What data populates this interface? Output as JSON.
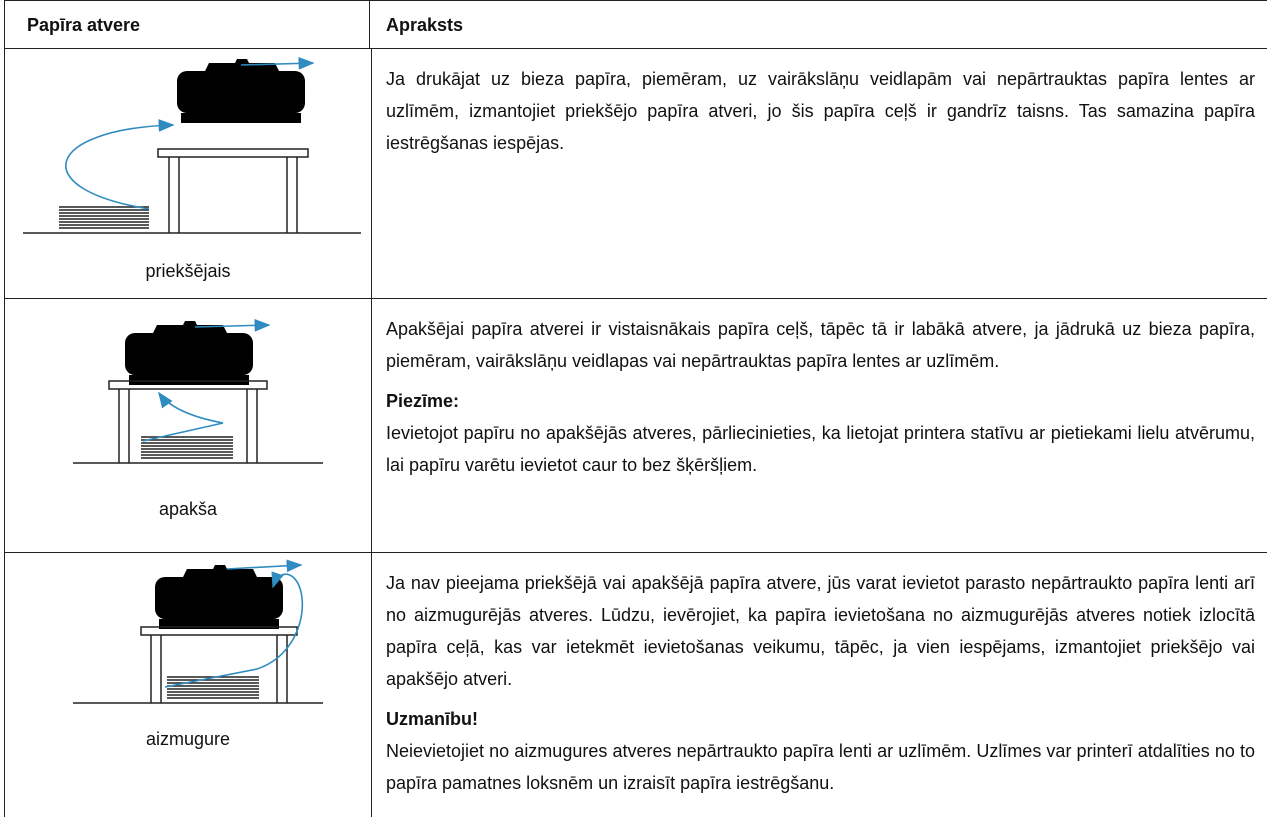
{
  "table": {
    "headers": [
      "Papīra atvere",
      "Apraksts"
    ],
    "rows": [
      {
        "label": "priekšējais",
        "text": "Ja drukājat uz bieza papīra, piemēram, uz vairākslāņu veidlapām vai nepārtrauktas papīra lentes ar uzlīmēm, izmantojiet priekšējo papīra atveri, jo šis papīra ceļš ir gandrīz taisns. Tas samazina papīra iestrēgšanas iespējas."
      },
      {
        "label": "apakša",
        "text": "Apakšējai papīra atverei ir vistaisnākais papīra ceļš, tāpēc tā ir labākā atvere, ja jādrukā uz bieza papīra, piemēram, vairākslāņu veidlapas vai nepārtrauktas papīra lentes ar uzlīmēm.",
        "note_title": "Piezīme:",
        "note_text": "Ievietojot papīru no apakšējās atveres, pārliecinieties, ka lietojat printera statīvu ar pietiekami lielu atvērumu, lai papīru varētu ievietot caur to bez šķēršļiem."
      },
      {
        "label": "aizmugure",
        "text": "Ja nav pieejama priekšējā vai apakšējā papīra atvere, jūs varat ievietot parasto nepārtraukto papīra lenti arī no aizmugurējās atveres. Lūdzu, ievērojiet, ka papīra ievietošana no aizmugurējās atveres notiek izlocītā papīra ceļā, kas var ietekmēt ievietošanas veikumu, tāpēc, ja vien iespējams, izmantojiet priekšējo vai apakšējo atveri.",
        "note_title": "Uzmanību!",
        "note_text": "Neievietojiet no aizmugures atveres nepārtraukto papīra lenti ar uzlīmēm. Uzlīmes var printerī atdalīties no to papīra pamatnes loksnēm un izraisīt papīra iestrēgšanu."
      }
    ]
  }
}
